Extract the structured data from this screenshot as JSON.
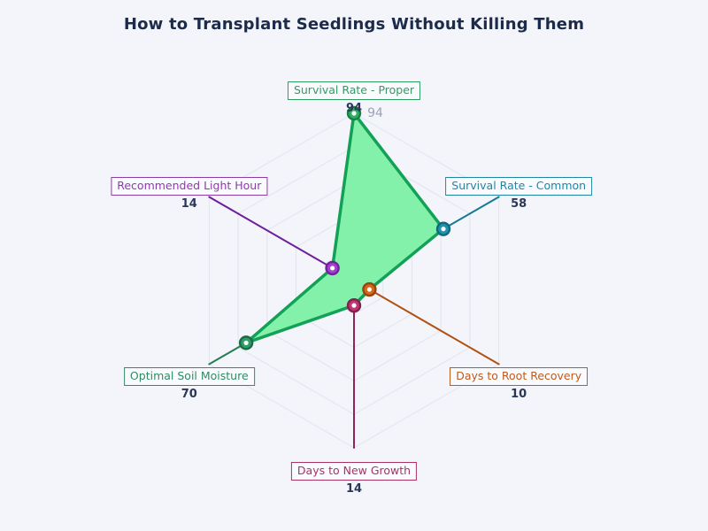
{
  "title": "How to Transplant Seedlings Without Killing Them",
  "colors": {
    "background": "#f4f5fa",
    "title_text": "#1c2b4a",
    "value_text": "#2b3757",
    "grid": "#e2e4ee",
    "tick_text": "#9aa3b8"
  },
  "chart_data": {
    "type": "radar",
    "title": "How to Transplant Seedlings Without Killing Them",
    "max": 94,
    "rings": 5,
    "tick_label": "94",
    "legend": "none",
    "series_fill": "#7df0a7",
    "series_fill_opacity": 0.95,
    "series_stroke": "#12a156",
    "axes": [
      {
        "label": "Survival Rate - Proper",
        "value": 94,
        "color": "#2e9e5e",
        "line": "#1fa35c",
        "marker": "#2fae63",
        "marker_edge": "#187f44"
      },
      {
        "label": "Survival Rate - Common",
        "value": 58,
        "color": "#1f87a0",
        "line": "#147a93",
        "marker": "#1d93ad",
        "marker_edge": "#11687e"
      },
      {
        "label": "Days to Root Recovery",
        "value": 10,
        "color": "#bf5a1e",
        "line": "#b05214",
        "marker": "#d2691e",
        "marker_edge": "#94460f"
      },
      {
        "label": "Days to New Growth",
        "value": 14,
        "color": "#a93363",
        "line": "#8e2457",
        "marker": "#c13672",
        "marker_edge": "#7f2050"
      },
      {
        "label": "Optimal Soil Moisture",
        "value": 70,
        "color": "#2e8c62",
        "line": "#267e53",
        "marker": "#2f9d68",
        "marker_edge": "#1c6b46"
      },
      {
        "label": "Recommended Light Hour",
        "value": 14,
        "color": "#8a3da8",
        "line": "#6d1f9c",
        "marker": "#a241cc",
        "marker_edge": "#6f2399"
      }
    ]
  }
}
